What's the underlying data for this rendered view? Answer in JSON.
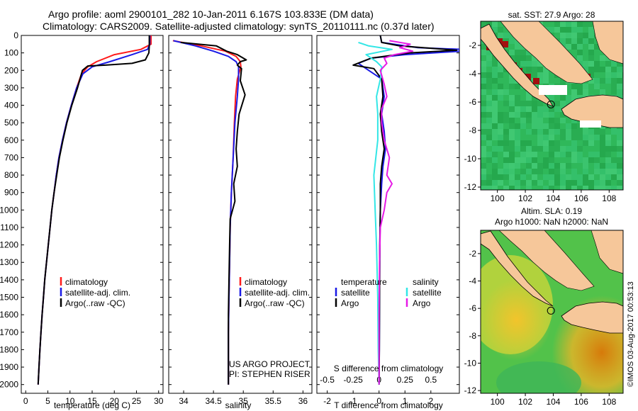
{
  "header": {
    "line1": "Argo profile: aoml 2900101_282 10-Jan-2011 6.167S 103.833E (DM data)",
    "line2": "Climatology: CARS2009. Satellite-adjusted climatology: synTS_20110111.nc (0.37d later)"
  },
  "colors": {
    "climatology": "#ff1a1a",
    "satellite": "#1a1ae6",
    "argo": "#000000",
    "argo_salinity": "#e61ae6",
    "satellite_salinity": "#33e6e6",
    "land": "#f6c79a",
    "ocean_green": "#2fb85a",
    "warm_red": "#a30f0f"
  },
  "footer": {
    "project": "US ARGO PROJECT",
    "pi": "PI: STEPHEN RISER",
    "stamp": "©IMOS 03-Aug-2017 00:53:13"
  },
  "chart_data": [
    {
      "type": "line",
      "panel": "temperature",
      "xlabel": "temperature (deg C)",
      "ylabel": "",
      "xlim": [
        -1,
        31
      ],
      "ylim": [
        2050,
        0
      ],
      "xticks": [
        0,
        5,
        10,
        15,
        20,
        25,
        30
      ],
      "yticks": [
        0,
        100,
        200,
        300,
        400,
        500,
        600,
        700,
        800,
        900,
        1000,
        1100,
        1200,
        1300,
        1400,
        1500,
        1600,
        1700,
        1800,
        1900,
        2000
      ],
      "legend": [
        "climatology",
        "satellite-adj. clim.",
        "Argo(..raw -QC)"
      ],
      "series": [
        {
          "name": "climatology",
          "points": [
            [
              28.3,
              0
            ],
            [
              28.3,
              50
            ],
            [
              26,
              80
            ],
            [
              20,
              110
            ],
            [
              16,
              150
            ],
            [
              14,
              180
            ],
            [
              12.6,
              220
            ],
            [
              11.5,
              300
            ],
            [
              10.3,
              400
            ],
            [
              9.2,
              500
            ],
            [
              8.3,
              600
            ],
            [
              7.5,
              700
            ],
            [
              6.9,
              800
            ],
            [
              6.4,
              900
            ],
            [
              5.9,
              1000
            ],
            [
              5.5,
              1100
            ],
            [
              5.1,
              1200
            ],
            [
              4.7,
              1300
            ],
            [
              4.3,
              1400
            ],
            [
              4,
              1500
            ],
            [
              3.7,
              1600
            ],
            [
              3.45,
              1700
            ],
            [
              3.2,
              1800
            ],
            [
              3,
              1900
            ],
            [
              2.8,
              2000
            ]
          ]
        },
        {
          "name": "satellite-adj. clim.",
          "points": [
            [
              28,
              0
            ],
            [
              28,
              50
            ],
            [
              27.5,
              80
            ],
            [
              24,
              110
            ],
            [
              19,
              150
            ],
            [
              15,
              180
            ],
            [
              12.9,
              220
            ],
            [
              11.5,
              300
            ],
            [
              10.3,
              400
            ],
            [
              9.2,
              500
            ],
            [
              8.3,
              600
            ],
            [
              7.5,
              700
            ],
            [
              6.9,
              800
            ],
            [
              6.4,
              900
            ],
            [
              5.9,
              1000
            ],
            [
              5.5,
              1100
            ],
            [
              5.1,
              1200
            ],
            [
              4.7,
              1300
            ],
            [
              4.3,
              1400
            ],
            [
              4,
              1500
            ],
            [
              3.7,
              1600
            ],
            [
              3.45,
              1700
            ],
            [
              3.2,
              1800
            ],
            [
              3,
              1900
            ],
            [
              2.8,
              2000
            ]
          ]
        },
        {
          "name": "Argo(..raw -QC)",
          "points": [
            [
              27.9,
              0
            ],
            [
              27.9,
              60
            ],
            [
              27.8,
              100
            ],
            [
              27,
              140
            ],
            [
              24,
              160
            ],
            [
              18,
              170
            ],
            [
              14,
              175
            ],
            [
              12.8,
              200
            ],
            [
              11.7,
              300
            ],
            [
              10.4,
              400
            ],
            [
              9.3,
              500
            ],
            [
              8.4,
              600
            ],
            [
              7.6,
              700
            ],
            [
              7,
              800
            ],
            [
              6.4,
              900
            ],
            [
              5.9,
              1000
            ],
            [
              5.5,
              1100
            ],
            [
              5.1,
              1200
            ],
            [
              4.7,
              1300
            ],
            [
              4.3,
              1400
            ],
            [
              4,
              1500
            ],
            [
              3.7,
              1600
            ],
            [
              3.45,
              1700
            ],
            [
              3.2,
              1800
            ],
            [
              3,
              1900
            ],
            [
              2.8,
              2000
            ]
          ]
        }
      ]
    },
    {
      "type": "line",
      "panel": "salinity",
      "xlabel": "salinity",
      "xlim": [
        33.75,
        36.15
      ],
      "ylim": [
        2050,
        0
      ],
      "xticks": [
        34,
        34.5,
        35,
        35.5,
        36
      ],
      "legend": [
        "climatology",
        "satellite-adj. clim.",
        "Argo(..raw -QC)"
      ],
      "series": [
        {
          "name": "climatology",
          "points": [
            [
              33.82,
              30
            ],
            [
              34.3,
              60
            ],
            [
              34.7,
              90
            ],
            [
              34.88,
              120
            ],
            [
              34.95,
              150
            ],
            [
              34.96,
              180
            ],
            [
              34.9,
              250
            ],
            [
              34.87,
              350
            ],
            [
              34.85,
              500
            ],
            [
              34.83,
              700
            ],
            [
              34.8,
              900
            ],
            [
              34.78,
              1100
            ],
            [
              34.77,
              1300
            ],
            [
              34.76,
              1500
            ],
            [
              34.75,
              1700
            ],
            [
              34.75,
              1900
            ],
            [
              34.75,
              2000
            ]
          ]
        },
        {
          "name": "satellite-adj. clim.",
          "points": [
            [
              33.83,
              30
            ],
            [
              34.2,
              60
            ],
            [
              34.5,
              90
            ],
            [
              34.75,
              120
            ],
            [
              34.88,
              150
            ],
            [
              34.92,
              180
            ],
            [
              34.92,
              250
            ],
            [
              34.9,
              350
            ],
            [
              34.86,
              500
            ],
            [
              34.83,
              700
            ],
            [
              34.8,
              900
            ],
            [
              34.78,
              1100
            ],
            [
              34.77,
              1300
            ],
            [
              34.76,
              1500
            ],
            [
              34.75,
              1700
            ],
            [
              34.75,
              1900
            ],
            [
              34.75,
              2000
            ]
          ]
        },
        {
          "name": "Argo(..raw -QC)",
          "points": [
            [
              33.95,
              40
            ],
            [
              34.55,
              60
            ],
            [
              34.72,
              90
            ],
            [
              34.9,
              110
            ],
            [
              35.05,
              140
            ],
            [
              34.95,
              150
            ],
            [
              34.9,
              170
            ],
            [
              34.97,
              190
            ],
            [
              34.95,
              260
            ],
            [
              35.03,
              340
            ],
            [
              34.93,
              450
            ],
            [
              34.9,
              550
            ],
            [
              34.88,
              650
            ],
            [
              34.9,
              750
            ],
            [
              34.84,
              850
            ],
            [
              34.86,
              950
            ],
            [
              34.78,
              1050
            ],
            [
              34.77,
              1200
            ],
            [
              34.76,
              1400
            ],
            [
              34.75,
              1600
            ],
            [
              34.75,
              1800
            ],
            [
              34.75,
              2000
            ]
          ]
        }
      ]
    },
    {
      "type": "line",
      "panel": "difference",
      "xlabel": "T difference from climatology",
      "xlabel_top": "S difference from climatology",
      "xlim": [
        -2.4,
        3.1
      ],
      "ylim": [
        2050,
        0
      ],
      "xticks": [
        -2,
        -1,
        0,
        1,
        2
      ],
      "xticks_s": [
        -0.5,
        -0.25,
        0,
        0.25,
        0.5
      ],
      "legend_temperature_title": "temperature",
      "legend_salinity_title": "salinity",
      "legend": [
        "satellite",
        "Argo",
        "satellite",
        "Argo"
      ],
      "series": [
        {
          "name": "satellite",
          "points": [
            [
              0.05,
              0
            ],
            [
              0.1,
              40
            ],
            [
              1.5,
              70
            ],
            [
              3.2,
              80
            ],
            [
              3.2,
              90
            ],
            [
              1,
              110
            ],
            [
              -0.3,
              130
            ],
            [
              -0.8,
              160
            ],
            [
              -0.4,
              200
            ],
            [
              0.1,
              250
            ],
            [
              0.2,
              350
            ],
            [
              0.1,
              450
            ],
            [
              0.2,
              550
            ],
            [
              0.25,
              650
            ],
            [
              0.15,
              750
            ],
            [
              0.1,
              850
            ],
            [
              0.05,
              1000
            ],
            [
              0.03,
              1200
            ],
            [
              0.02,
              1500
            ],
            [
              0.01,
              1800
            ],
            [
              0,
              2000
            ]
          ]
        },
        {
          "name": "Argo",
          "points": [
            [
              0.05,
              0
            ],
            [
              0.1,
              40
            ],
            [
              0.8,
              60
            ],
            [
              3,
              85
            ],
            [
              1.2,
              100
            ],
            [
              -0.3,
              130
            ],
            [
              -1,
              170
            ],
            [
              -0.2,
              190
            ],
            [
              0.1,
              250
            ],
            [
              0.15,
              350
            ],
            [
              0.05,
              450
            ],
            [
              0.1,
              550
            ],
            [
              0.2,
              650
            ],
            [
              0.1,
              750
            ],
            [
              0.05,
              850
            ],
            [
              0.05,
              1000
            ],
            [
              0.03,
              1200
            ],
            [
              0.02,
              1500
            ],
            [
              0.01,
              1800
            ],
            [
              0,
              2000
            ]
          ]
        },
        {
          "name": "satellite (S)",
          "points": [
            [
              -0.8,
              40
            ],
            [
              -0.4,
              60
            ],
            [
              0.5,
              80
            ],
            [
              -0.5,
              110
            ],
            [
              -0.1,
              150
            ],
            [
              0.1,
              180
            ],
            [
              0.05,
              250
            ],
            [
              -0.1,
              350
            ],
            [
              -0.05,
              450
            ],
            [
              -0.05,
              600
            ],
            [
              -0.2,
              800
            ],
            [
              -0.15,
              1000
            ],
            [
              -0.1,
              1200
            ],
            [
              -0.05,
              1500
            ],
            [
              -0.03,
              1800
            ],
            [
              0,
              2000
            ]
          ]
        },
        {
          "name": "Argo (S)",
          "points": [
            [
              0.4,
              30
            ],
            [
              1.2,
              50
            ],
            [
              0.8,
              70
            ],
            [
              1.3,
              90
            ],
            [
              0.6,
              110
            ],
            [
              0.2,
              130
            ],
            [
              0.3,
              160
            ],
            [
              0.05,
              200
            ],
            [
              0.2,
              280
            ],
            [
              0.3,
              350
            ],
            [
              0.1,
              420
            ],
            [
              0.1,
              500
            ],
            [
              0.2,
              600
            ],
            [
              0.4,
              700
            ],
            [
              0.3,
              800
            ],
            [
              0.5,
              850
            ],
            [
              0.3,
              900
            ],
            [
              0.2,
              1000
            ],
            [
              0.05,
              1100
            ],
            [
              0.02,
              1300
            ],
            [
              0,
              1600
            ],
            [
              0,
              2000
            ]
          ]
        }
      ]
    },
    {
      "type": "heatmap",
      "panel": "sst_map",
      "title": "sat. SST: 27.9 Argo: 28",
      "xlim": [
        98.8,
        109
      ],
      "ylim": [
        -12.2,
        -0.3
      ],
      "xticks": [
        100,
        102,
        104,
        106,
        108
      ],
      "yticks": [
        -2,
        -4,
        -6,
        -8,
        -10,
        -12
      ],
      "marker": {
        "lon": 103.833,
        "lat": -6.167
      }
    },
    {
      "type": "heatmap",
      "panel": "sla_map",
      "title_line1": "Altim. SLA: 0.19",
      "title_line2": "Argo h1000: NaN h2000: NaN",
      "xlim": [
        98.8,
        109
      ],
      "ylim": [
        -12.2,
        -0.3
      ],
      "xticks": [
        100,
        102,
        104,
        106,
        108
      ],
      "yticks": [
        -2,
        -4,
        -6,
        -8,
        -10,
        -12
      ],
      "marker": {
        "lon": 103.833,
        "lat": -6.167
      }
    }
  ]
}
